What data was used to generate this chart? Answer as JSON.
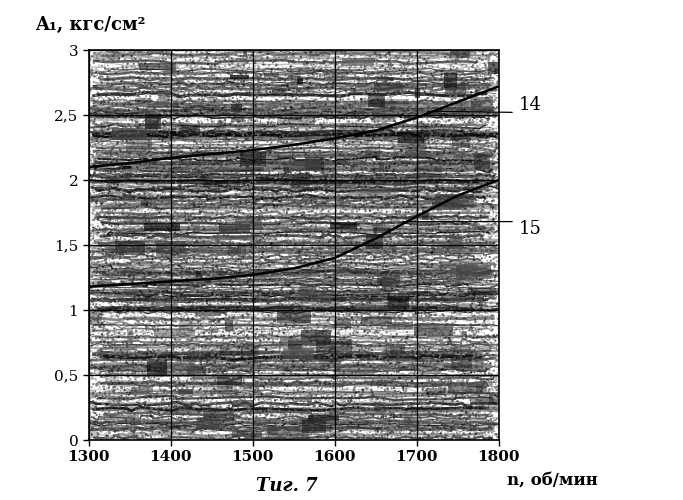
{
  "ylabel": "A₁, кгс/см²",
  "xlabel": "n, об/мин",
  "caption": "Τиг. 7",
  "xlim": [
    1300,
    1800
  ],
  "ylim": [
    0,
    3
  ],
  "xticks": [
    1300,
    1400,
    1500,
    1600,
    1700,
    1800
  ],
  "yticks": [
    0,
    0.5,
    1.0,
    1.5,
    2.0,
    2.5,
    3.0
  ],
  "ytick_labels": [
    "0",
    "0,5",
    "1",
    "1,5",
    "2",
    "2,5",
    "3"
  ],
  "curve14_x": [
    1300,
    1350,
    1400,
    1450,
    1500,
    1550,
    1600,
    1650,
    1700,
    1750,
    1800
  ],
  "curve14_y": [
    2.1,
    2.13,
    2.17,
    2.2,
    2.23,
    2.27,
    2.32,
    2.38,
    2.48,
    2.6,
    2.72
  ],
  "curve15_x": [
    1300,
    1350,
    1400,
    1450,
    1500,
    1550,
    1600,
    1650,
    1700,
    1750,
    1800
  ],
  "curve15_y": [
    1.18,
    1.2,
    1.22,
    1.24,
    1.27,
    1.32,
    1.4,
    1.55,
    1.72,
    1.88,
    2.0
  ],
  "curve_color": "#000000",
  "label14": "14",
  "label15": "15",
  "background_color": "#ffffff",
  "figure_size": [
    6.83,
    5.0
  ],
  "dpi": 100,
  "ann14_tail_x": 1790,
  "ann14_tail_y": 2.68,
  "ann14_head_x": 1710,
  "ann14_head_y": 2.53,
  "ann15_tail_x": 1790,
  "ann15_tail_y": 1.88,
  "ann15_head_x": 1680,
  "ann15_head_y": 1.68
}
